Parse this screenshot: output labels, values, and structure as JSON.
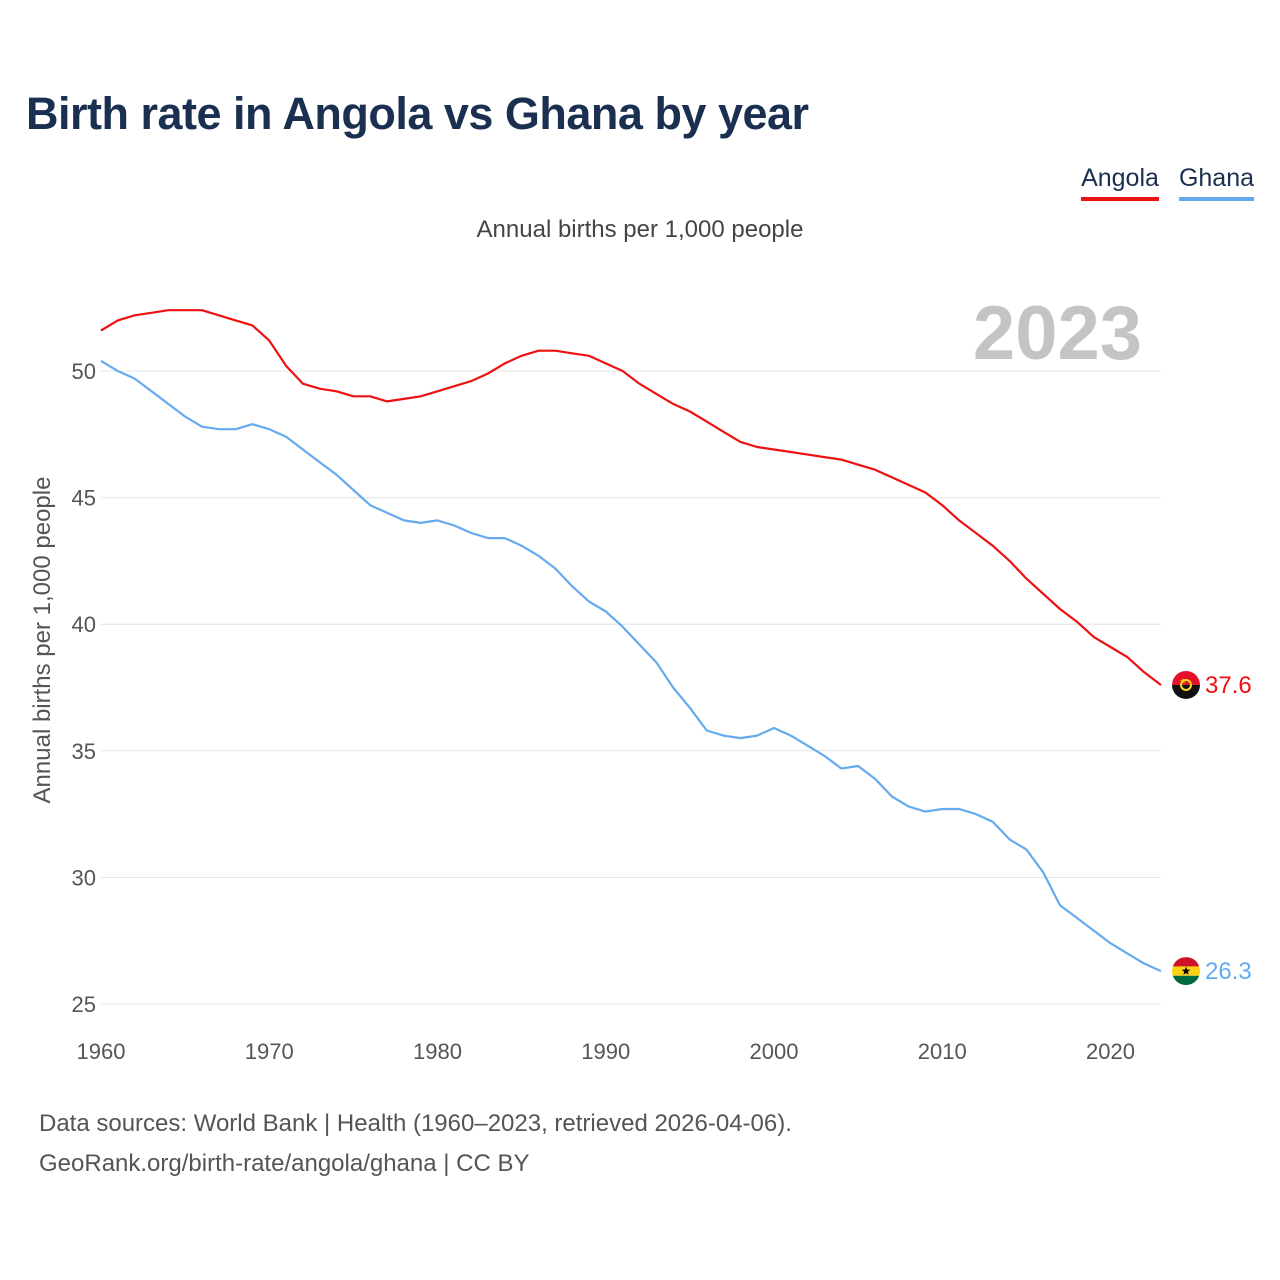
{
  "title": "Birth rate in Angola vs Ghana by year",
  "subtitle": "Annual births per 1,000 people",
  "year_label": "2023",
  "legend": [
    {
      "name": "Angola",
      "color": "#ee1111"
    },
    {
      "name": "Ghana",
      "color": "#66aaee"
    }
  ],
  "source": {
    "line1": "Data sources: World Bank | Health (1960–2023, retrieved 2026-04-06).",
    "line2": "GeoRank.org/birth-rate/angola/ghana | CC BY"
  },
  "chart_data": {
    "type": "line",
    "title": "Birth rate in Angola vs Ghana by year",
    "ylabel": "Annual births per 1,000 people",
    "xlabel": "",
    "xlim": [
      1960,
      2023
    ],
    "ylim": [
      25,
      52.5
    ],
    "x_ticks": [
      1960,
      1970,
      1980,
      1990,
      2000,
      2010,
      2020
    ],
    "y_ticks": [
      25,
      30,
      35,
      40,
      45,
      50
    ],
    "grid": true,
    "x": [
      1960,
      1961,
      1962,
      1963,
      1964,
      1965,
      1966,
      1967,
      1968,
      1969,
      1970,
      1971,
      1972,
      1973,
      1974,
      1975,
      1976,
      1977,
      1978,
      1979,
      1980,
      1981,
      1982,
      1983,
      1984,
      1985,
      1986,
      1987,
      1988,
      1989,
      1990,
      1991,
      1992,
      1993,
      1994,
      1995,
      1996,
      1997,
      1998,
      1999,
      2000,
      2001,
      2002,
      2003,
      2004,
      2005,
      2006,
      2007,
      2008,
      2009,
      2010,
      2011,
      2012,
      2013,
      2014,
      2015,
      2016,
      2017,
      2018,
      2019,
      2020,
      2021,
      2022,
      2023
    ],
    "series": [
      {
        "name": "Angola",
        "color": "#ee1111",
        "end_label": "37.6",
        "flag": "angola-flag-icon",
        "values": [
          51.6,
          52.0,
          52.2,
          52.3,
          52.4,
          52.4,
          52.4,
          52.2,
          52.0,
          51.8,
          51.2,
          50.2,
          49.5,
          49.3,
          49.2,
          49.0,
          49.0,
          48.8,
          48.9,
          49.0,
          49.2,
          49.4,
          49.6,
          49.9,
          50.3,
          50.6,
          50.8,
          50.8,
          50.7,
          50.6,
          50.3,
          50.0,
          49.5,
          49.1,
          48.7,
          48.4,
          48.0,
          47.6,
          47.2,
          47.0,
          46.9,
          46.8,
          46.7,
          46.6,
          46.5,
          46.3,
          46.1,
          45.8,
          45.5,
          45.2,
          44.7,
          44.1,
          43.6,
          43.1,
          42.5,
          41.8,
          41.2,
          40.6,
          40.1,
          39.5,
          39.1,
          38.7,
          38.1,
          37.6
        ]
      },
      {
        "name": "Ghana",
        "color": "#66aaee",
        "end_label": "26.3",
        "flag": "ghana-flag-icon",
        "values": [
          50.4,
          50.0,
          49.7,
          49.2,
          48.7,
          48.2,
          47.8,
          47.7,
          47.7,
          47.9,
          47.7,
          47.4,
          46.9,
          46.4,
          45.9,
          45.3,
          44.7,
          44.4,
          44.1,
          44.0,
          44.1,
          43.9,
          43.6,
          43.4,
          43.4,
          43.1,
          42.7,
          42.2,
          41.5,
          40.9,
          40.5,
          39.9,
          39.2,
          38.5,
          37.5,
          36.7,
          35.8,
          35.6,
          35.5,
          35.6,
          35.9,
          35.6,
          35.2,
          34.8,
          34.3,
          34.4,
          33.9,
          33.2,
          32.8,
          32.6,
          32.7,
          32.7,
          32.5,
          32.2,
          31.5,
          31.1,
          30.2,
          28.9,
          28.4,
          27.9,
          27.4,
          27.0,
          26.6,
          26.3
        ]
      }
    ]
  }
}
